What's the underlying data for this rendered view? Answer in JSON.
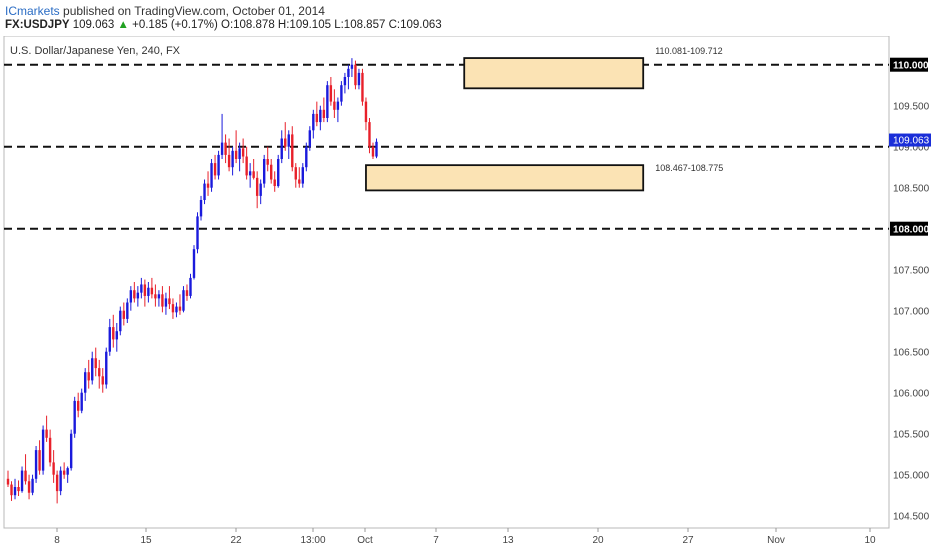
{
  "header": {
    "author": "ICmarkets",
    "published_text": "published on TradingView.com, October 01, 2014",
    "symbol": "FX:USDJPY",
    "last": "109.063",
    "change_arrow": "▲",
    "change": "+0.185 (+0.17%)",
    "open_label": "O:",
    "open": "108.878",
    "high_label": "H:",
    "high": "109.105",
    "low_label": "L:",
    "low": "108.857",
    "close_label": "C:",
    "close": "109.063"
  },
  "chart_data": {
    "type": "candlestick",
    "title": "U.S. Dollar/Japanese Yen, 240, FX",
    "colors": {
      "up": "#1a1adc",
      "down": "#e8202a",
      "zone_fill": "#fbe3b4",
      "price_badge": "#1a2ed8"
    },
    "y_axis": {
      "min": 104.35,
      "max": 110.35,
      "ticks": [
        "104.500",
        "105.000",
        "105.500",
        "106.000",
        "106.500",
        "107.000",
        "107.500",
        "108.000",
        "108.500",
        "109.000",
        "109.500",
        "110.000"
      ]
    },
    "x_axis": {
      "labels": [
        "8",
        "15",
        "22",
        "13:00",
        "Oct",
        "7",
        "13",
        "20",
        "27",
        "Nov",
        "10"
      ],
      "label_pos": [
        16,
        49,
        83,
        118,
        132,
        161,
        188,
        221,
        254,
        288,
        321
      ]
    },
    "n_slots": 330,
    "horizontal_levels": [
      {
        "value": 110.0,
        "label": "110.000"
      },
      {
        "value": 109.0,
        "label": "109.000"
      },
      {
        "value": 108.0,
        "label": "108.000"
      }
    ],
    "last_price_label": "109.063",
    "zones": [
      {
        "label": "110.081-109.712",
        "low": 109.712,
        "high": 110.081,
        "from": 133,
        "to": 184
      },
      {
        "label": "108.467-108.775",
        "low": 108.467,
        "high": 108.775,
        "from": 105,
        "to": 184
      }
    ],
    "candles": [
      [
        104.95,
        105.05,
        104.85,
        104.88
      ],
      [
        104.88,
        104.92,
        104.68,
        104.75
      ],
      [
        104.75,
        104.95,
        104.7,
        104.85
      ],
      [
        104.85,
        104.93,
        104.74,
        104.8
      ],
      [
        104.8,
        105.1,
        104.78,
        105.05
      ],
      [
        105.05,
        105.25,
        104.88,
        104.92
      ],
      [
        104.92,
        105.0,
        104.7,
        104.78
      ],
      [
        104.78,
        105.0,
        104.75,
        104.95
      ],
      [
        104.95,
        105.35,
        104.9,
        105.3
      ],
      [
        105.3,
        105.42,
        105.0,
        105.05
      ],
      [
        105.05,
        105.6,
        105.0,
        105.55
      ],
      [
        105.55,
        105.72,
        105.4,
        105.45
      ],
      [
        105.45,
        105.55,
        105.1,
        105.15
      ],
      [
        105.15,
        105.3,
        104.9,
        105.0
      ],
      [
        105.0,
        105.05,
        104.65,
        104.8
      ],
      [
        104.8,
        105.1,
        104.75,
        105.05
      ],
      [
        105.05,
        105.15,
        104.95,
        105.0
      ],
      [
        105.0,
        105.1,
        104.9,
        105.08
      ],
      [
        105.08,
        105.55,
        105.05,
        105.5
      ],
      [
        105.5,
        105.95,
        105.45,
        105.9
      ],
      [
        105.9,
        106.0,
        105.7,
        105.78
      ],
      [
        105.78,
        106.05,
        105.75,
        106.0
      ],
      [
        106.0,
        106.3,
        105.9,
        106.25
      ],
      [
        106.25,
        106.4,
        106.05,
        106.15
      ],
      [
        106.15,
        106.5,
        106.1,
        106.42
      ],
      [
        106.42,
        106.55,
        106.2,
        106.3
      ],
      [
        106.3,
        106.4,
        106.05,
        106.2
      ],
      [
        106.2,
        106.3,
        106.0,
        106.1
      ],
      [
        106.1,
        106.55,
        106.05,
        106.5
      ],
      [
        106.5,
        106.9,
        106.45,
        106.8
      ],
      [
        106.8,
        106.95,
        106.55,
        106.65
      ],
      [
        106.65,
        106.85,
        106.5,
        106.75
      ],
      [
        106.75,
        107.05,
        106.7,
        107.0
      ],
      [
        107.0,
        107.1,
        106.82,
        106.9
      ],
      [
        106.9,
        107.15,
        106.85,
        107.1
      ],
      [
        107.1,
        107.3,
        107.0,
        107.25
      ],
      [
        107.25,
        107.35,
        107.1,
        107.15
      ],
      [
        107.15,
        107.3,
        107.05,
        107.22
      ],
      [
        107.22,
        107.4,
        107.15,
        107.32
      ],
      [
        107.32,
        107.38,
        107.05,
        107.18
      ],
      [
        107.18,
        107.35,
        107.1,
        107.28
      ],
      [
        107.28,
        107.4,
        107.15,
        107.2
      ],
      [
        107.2,
        107.32,
        107.05,
        107.15
      ],
      [
        107.15,
        107.25,
        107.05,
        107.2
      ],
      [
        107.2,
        107.3,
        106.98,
        107.05
      ],
      [
        107.05,
        107.22,
        106.95,
        107.15
      ],
      [
        107.15,
        107.3,
        107.02,
        107.08
      ],
      [
        107.08,
        107.15,
        106.9,
        106.98
      ],
      [
        106.98,
        107.1,
        106.92,
        107.05
      ],
      [
        107.05,
        107.2,
        106.95,
        107.0
      ],
      [
        107.0,
        107.3,
        106.98,
        107.25
      ],
      [
        107.25,
        107.32,
        107.12,
        107.18
      ],
      [
        107.18,
        107.45,
        107.15,
        107.4
      ],
      [
        107.4,
        107.8,
        107.38,
        107.75
      ],
      [
        107.75,
        108.2,
        107.7,
        108.15
      ],
      [
        108.15,
        108.4,
        108.1,
        108.35
      ],
      [
        108.35,
        108.6,
        108.3,
        108.55
      ],
      [
        108.55,
        108.7,
        108.4,
        108.5
      ],
      [
        108.5,
        108.85,
        108.45,
        108.8
      ],
      [
        108.8,
        108.9,
        108.6,
        108.65
      ],
      [
        108.65,
        108.95,
        108.6,
        108.9
      ],
      [
        108.9,
        109.4,
        108.85,
        109.05
      ],
      [
        109.05,
        109.15,
        108.8,
        108.9
      ],
      [
        108.9,
        109.1,
        108.7,
        108.75
      ],
      [
        108.75,
        109.0,
        108.65,
        108.95
      ],
      [
        108.95,
        109.2,
        108.8,
        108.85
      ],
      [
        108.85,
        109.05,
        108.7,
        108.98
      ],
      [
        108.98,
        109.1,
        108.8,
        108.88
      ],
      [
        108.88,
        109.0,
        108.6,
        108.65
      ],
      [
        108.65,
        108.8,
        108.5,
        108.7
      ],
      [
        108.7,
        108.85,
        108.6,
        108.62
      ],
      [
        108.62,
        108.7,
        108.25,
        108.4
      ],
      [
        108.4,
        108.6,
        108.3,
        108.55
      ],
      [
        108.55,
        108.9,
        108.5,
        108.85
      ],
      [
        108.85,
        109.0,
        108.7,
        108.78
      ],
      [
        108.78,
        108.85,
        108.55,
        108.6
      ],
      [
        108.6,
        108.7,
        108.45,
        108.52
      ],
      [
        108.52,
        108.9,
        108.5,
        108.85
      ],
      [
        108.85,
        109.2,
        108.8,
        109.1
      ],
      [
        109.1,
        109.3,
        108.95,
        109.0
      ],
      [
        109.0,
        109.2,
        108.85,
        109.15
      ],
      [
        109.15,
        109.25,
        108.7,
        108.75
      ],
      [
        108.75,
        108.8,
        108.5,
        108.6
      ],
      [
        108.6,
        108.75,
        108.5,
        108.55
      ],
      [
        108.55,
        108.8,
        108.5,
        108.75
      ],
      [
        108.75,
        109.05,
        108.7,
        109.0
      ],
      [
        109.0,
        109.25,
        108.95,
        109.2
      ],
      [
        109.2,
        109.45,
        109.1,
        109.4
      ],
      [
        109.4,
        109.55,
        109.25,
        109.3
      ],
      [
        109.3,
        109.5,
        109.2,
        109.45
      ],
      [
        109.45,
        109.6,
        109.3,
        109.35
      ],
      [
        109.35,
        109.8,
        109.3,
        109.75
      ],
      [
        109.75,
        109.85,
        109.5,
        109.55
      ],
      [
        109.55,
        109.7,
        109.35,
        109.45
      ],
      [
        109.45,
        109.6,
        109.3,
        109.55
      ],
      [
        109.55,
        109.8,
        109.5,
        109.75
      ],
      [
        109.75,
        109.9,
        109.65,
        109.85
      ],
      [
        109.85,
        110.0,
        109.7,
        109.95
      ],
      [
        109.95,
        110.08,
        109.85,
        110.0
      ],
      [
        110.0,
        110.05,
        109.7,
        109.75
      ],
      [
        109.75,
        109.95,
        109.7,
        109.9
      ],
      [
        109.9,
        109.95,
        109.5,
        109.55
      ],
      [
        109.55,
        109.6,
        109.2,
        109.3
      ],
      [
        109.3,
        109.35,
        108.92,
        109.0
      ],
      [
        109.0,
        109.05,
        108.85,
        108.88
      ],
      [
        108.88,
        109.1,
        108.86,
        109.06
      ]
    ],
    "candle_slots": [
      3,
      4,
      5,
      6,
      7,
      8,
      9,
      10,
      11,
      12,
      13,
      14,
      15,
      16,
      17,
      18,
      19,
      20,
      21,
      22,
      23,
      24,
      25,
      26,
      27,
      28,
      29,
      30,
      31,
      32,
      33,
      34,
      35,
      36,
      37,
      38,
      39,
      40,
      41,
      42,
      43,
      44,
      45,
      46,
      47,
      48,
      49,
      50,
      51,
      52,
      53,
      54,
      55,
      56,
      57,
      58,
      59,
      60,
      61,
      62,
      63,
      64,
      65,
      66,
      67,
      68,
      69,
      70,
      71,
      72,
      73,
      74,
      75,
      76,
      77,
      78,
      79,
      80,
      81,
      82,
      83,
      84,
      85,
      86,
      87,
      88,
      89,
      90,
      91,
      92,
      93,
      94,
      95,
      96,
      97,
      98,
      99,
      100,
      101,
      102,
      103,
      104,
      105,
      106,
      107,
      108
    ]
  }
}
